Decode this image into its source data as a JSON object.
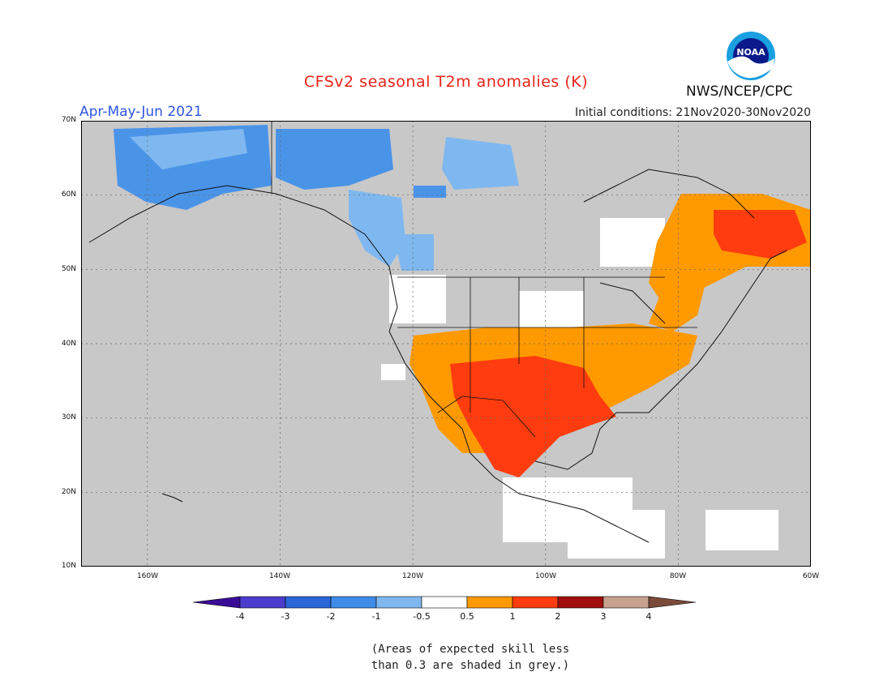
{
  "header": {
    "title": "CFSv2 seasonal T2m anomalies (K)",
    "period": "Apr-May-Jun 2021",
    "initial_conditions": "Initial conditions: 21Nov2020-30Nov2020",
    "agency": "NWS/NCEP/CPC",
    "logo_text": "NOAA",
    "logo_icon": "noaa-logo-icon"
  },
  "map": {
    "lat_labels": [
      "70N",
      "60N",
      "50N",
      "40N",
      "30N",
      "20N",
      "10N"
    ],
    "lon_labels": [
      "160W",
      "140W",
      "120W",
      "100W",
      "80W",
      "60W"
    ],
    "lon_range": [
      -170,
      -60
    ],
    "lat_range": [
      10,
      70
    ],
    "grid": "dotted",
    "colors": {
      "ocean_land_grey": "#c8c8c8",
      "neutral": "#ffffff",
      "cool_1": "#7fb8f0",
      "cool_2": "#4a94e8",
      "warm_1": "#ff9900",
      "warm_2": "#ff3c0f"
    }
  },
  "colorbar": {
    "labels": [
      "-4",
      "-3",
      "-2",
      "-1",
      "-0.5",
      "0.5",
      "1",
      "2",
      "3",
      "4"
    ],
    "colors": [
      "#3a0c98",
      "#4a3ccc",
      "#2a66d6",
      "#3f8ce8",
      "#7fb8f0",
      "#ffffff",
      "#ff9900",
      "#ff3c0f",
      "#a00d0d",
      "#c8a290",
      "#7a4a3a"
    ]
  },
  "note": {
    "line1": "(Areas of expected skill less",
    "line2": "than 0.3 are shaded in grey.)"
  }
}
